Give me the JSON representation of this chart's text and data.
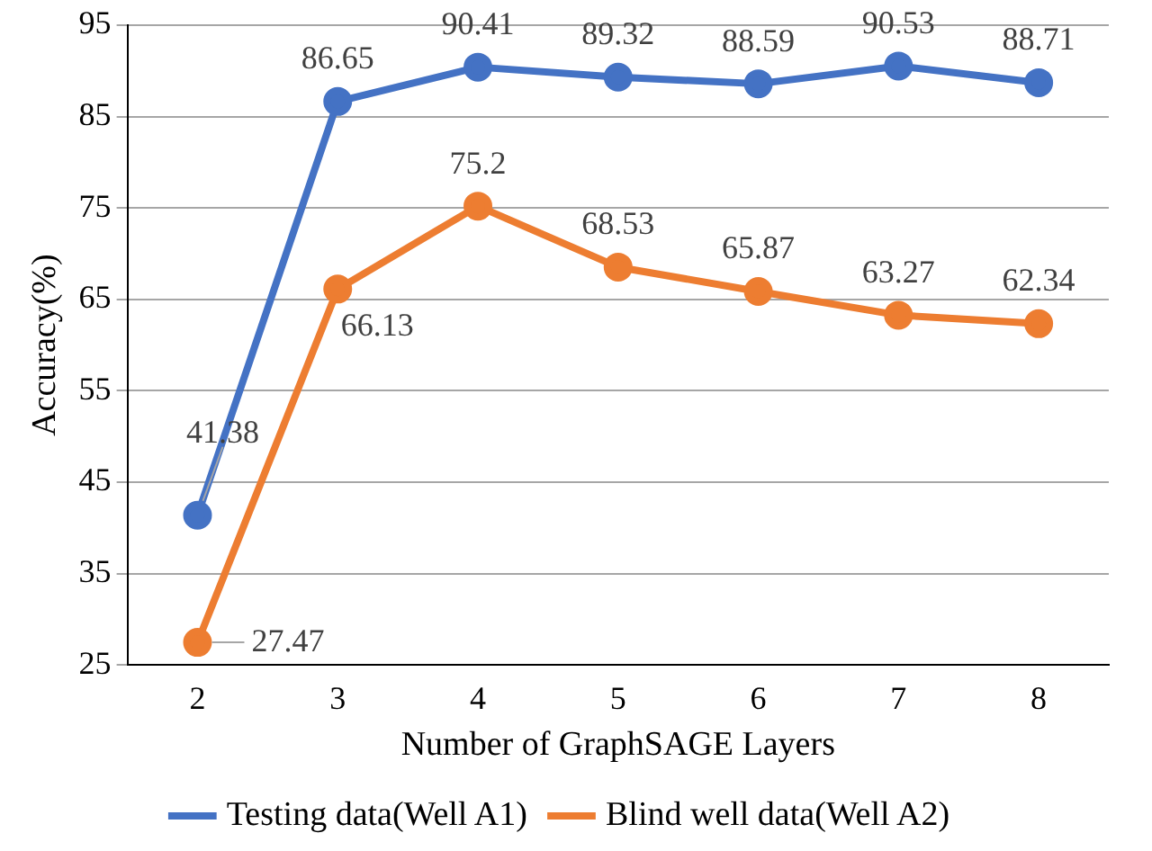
{
  "chart_data": {
    "type": "line",
    "xlabel": "Number of GraphSAGE Layers",
    "ylabel": "Accuracy(%)",
    "categories": [
      "2",
      "3",
      "4",
      "5",
      "6",
      "7",
      "8"
    ],
    "series": [
      {
        "name": "Testing data(Well A1)",
        "color": "#4472c4",
        "values": [
          41.38,
          86.65,
          90.41,
          89.32,
          88.59,
          90.53,
          88.71
        ]
      },
      {
        "name": "Blind well data(Well A2)",
        "color": "#ed7d31",
        "values": [
          27.47,
          66.13,
          75.2,
          68.53,
          65.87,
          63.27,
          62.34
        ]
      }
    ],
    "ylim": [
      25,
      95
    ],
    "yticks": [
      25,
      35,
      45,
      55,
      65,
      75,
      85,
      95
    ],
    "grid": "y",
    "legend": "bottom",
    "marker": "circle",
    "line_style": "solid",
    "data_labels": true
  }
}
